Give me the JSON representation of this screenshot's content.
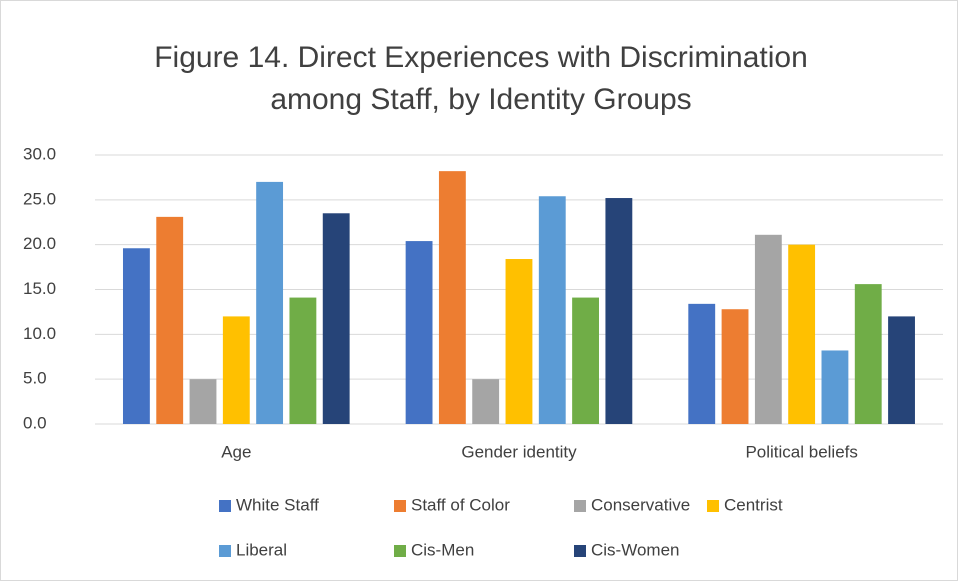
{
  "chart_data": {
    "type": "bar",
    "title": "Figure 14. Direct Experiences with Discrimination among Staff, by Identity Groups",
    "categories": [
      "Age",
      "Gender identity",
      "Political beliefs"
    ],
    "series": [
      {
        "name": "White Staff",
        "color": "#4472c4",
        "values": [
          19.6,
          20.4,
          13.4
        ]
      },
      {
        "name": "Staff of Color",
        "color": "#ed7d31",
        "values": [
          23.1,
          28.2,
          12.8
        ]
      },
      {
        "name": "Conservative",
        "color": "#a5a5a5",
        "values": [
          5.0,
          5.0,
          21.1
        ]
      },
      {
        "name": "Centrist",
        "color": "#ffc000",
        "values": [
          12.0,
          18.4,
          20.0
        ]
      },
      {
        "name": "Liberal",
        "color": "#5b9bd5",
        "values": [
          27.0,
          25.4,
          8.2
        ]
      },
      {
        "name": "Cis-Men",
        "color": "#70ad47",
        "values": [
          14.1,
          14.1,
          15.6
        ]
      },
      {
        "name": "Cis-Women",
        "color": "#264478",
        "values": [
          23.5,
          25.2,
          12.0
        ]
      }
    ],
    "ylim": [
      0,
      30
    ],
    "yticks": [
      {
        "value": 0,
        "label": "0.0"
      },
      {
        "value": 5,
        "label": "5.0"
      },
      {
        "value": 10,
        "label": "10.0"
      },
      {
        "value": 15,
        "label": "15.0"
      },
      {
        "value": 20,
        "label": "20.0"
      },
      {
        "value": 25,
        "label": "25.0"
      },
      {
        "value": 30,
        "label": "30.0"
      }
    ],
    "grid": true,
    "legend": "bottom"
  }
}
